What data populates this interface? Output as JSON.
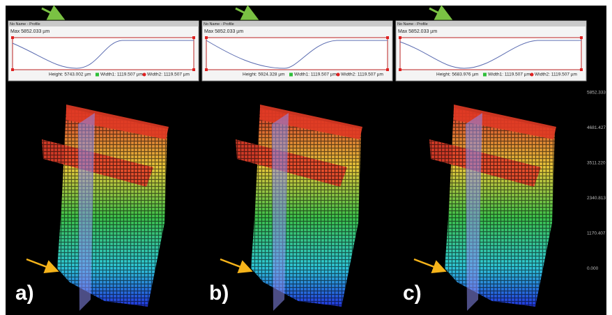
{
  "panels": [
    {
      "header": "No Name - Profile",
      "max": "Max  5852.033 µm",
      "height": "Height: 5743.002 µm",
      "width1": "Width1: 1119.507 µm",
      "width2": "Width2: 1119.507 µm",
      "label": "a)"
    },
    {
      "header": "No Name - Profile",
      "max": "Max  5852.033 µm",
      "height": "Height: 5924.328 µm",
      "width1": "Width1: 1119.507 µm",
      "width2": "Width2: 1119.507 µm",
      "label": "b)"
    },
    {
      "header": "No Name - Profile",
      "max": "Max  5852.033 µm",
      "height": "Height: 5683.976 µm",
      "width1": "Width1: 1119.507 µm",
      "width2": "Width2: 1119.507 µm",
      "label": "c)"
    }
  ],
  "scale": [
    "5852.333",
    "4681.427",
    "3511.220",
    "2340.813",
    "1170.407",
    "0.000"
  ]
}
